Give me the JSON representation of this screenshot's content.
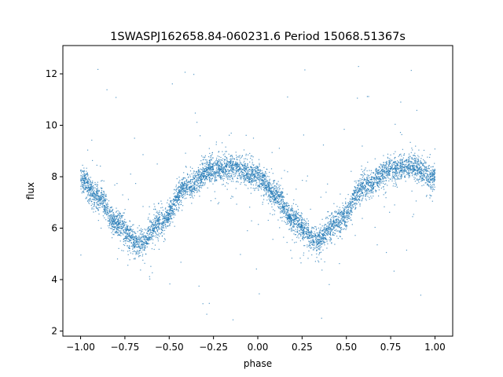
{
  "chart_data": {
    "type": "scatter",
    "title": "1SWASPJ162658.84-060231.6 Period 15068.51367s",
    "xlabel": "phase",
    "ylabel": "flux",
    "xlim": [
      -1.1,
      1.1
    ],
    "ylim": [
      1.8,
      13.1
    ],
    "xticks": [
      -1.0,
      -0.75,
      -0.5,
      -0.25,
      0.0,
      0.25,
      0.5,
      0.75,
      1.0
    ],
    "xtick_labels": [
      "−1.00",
      "−0.75",
      "−0.50",
      "−0.25",
      "0.00",
      "0.25",
      "0.50",
      "0.75",
      "1.00"
    ],
    "yticks": [
      2,
      4,
      6,
      8,
      10,
      12
    ],
    "ytick_labels": [
      "2",
      "4",
      "6",
      "8",
      "10",
      "12"
    ],
    "grid": false,
    "marker_color": "#1f77b4",
    "model_curve": {
      "description": "phase-folded light curve, two minima per cycle, shown over two cycles",
      "phase": [
        -1.0,
        -0.9,
        -0.8,
        -0.67,
        -0.55,
        -0.4,
        -0.25,
        -0.15,
        0.0,
        0.1,
        0.2,
        0.33,
        0.45,
        0.6,
        0.75,
        0.85,
        1.0
      ],
      "flux": [
        7.9,
        7.2,
        6.2,
        5.4,
        6.2,
        7.6,
        8.3,
        8.4,
        8.0,
        7.3,
        6.3,
        5.5,
        6.2,
        7.6,
        8.3,
        8.4,
        8.0
      ]
    },
    "scatter_band_halfwidth": 0.45,
    "outlier_range": [
      2.3,
      12.6
    ]
  }
}
